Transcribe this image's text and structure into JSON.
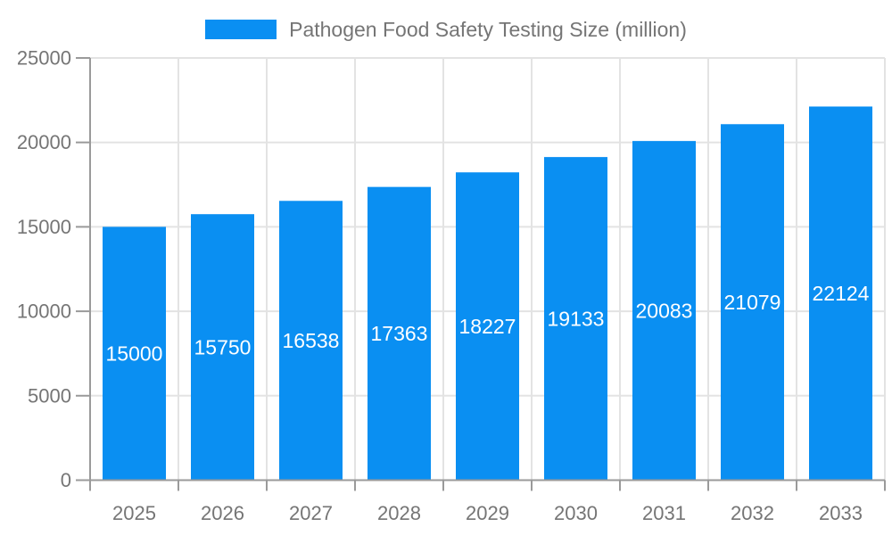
{
  "legend": {
    "label": "Pathogen Food Safety Testing Size (million)"
  },
  "chart_data": {
    "type": "bar",
    "title": "Pathogen Food Safety Testing Size (million)",
    "categories": [
      "2025",
      "2026",
      "2027",
      "2028",
      "2029",
      "2030",
      "2031",
      "2032",
      "2033"
    ],
    "values": [
      15000,
      15750,
      16538,
      17363,
      18227,
      19133,
      20083,
      21079,
      22124
    ],
    "bar_labels": [
      "15000",
      "15750",
      "16538",
      "17363",
      "18227",
      "19133",
      "20083",
      "21079",
      "22124"
    ],
    "xlabel": "",
    "ylabel": "",
    "ylim": [
      0,
      25000
    ],
    "yticks": [
      0,
      5000,
      10000,
      15000,
      20000,
      25000
    ],
    "ytick_labels": [
      "0",
      "5000",
      "10000",
      "15000",
      "20000",
      "25000"
    ],
    "grid": true,
    "legend_position": "top-center",
    "bar_label_position": "inside-center",
    "colors": {
      "bar": "#0a8ff2",
      "grid": "#e3e3e3",
      "axis": "#9a9a9a",
      "tick_label": "#757575",
      "bar_label": "#ffffff",
      "legend_text": "#757575",
      "background": "#ffffff"
    }
  }
}
